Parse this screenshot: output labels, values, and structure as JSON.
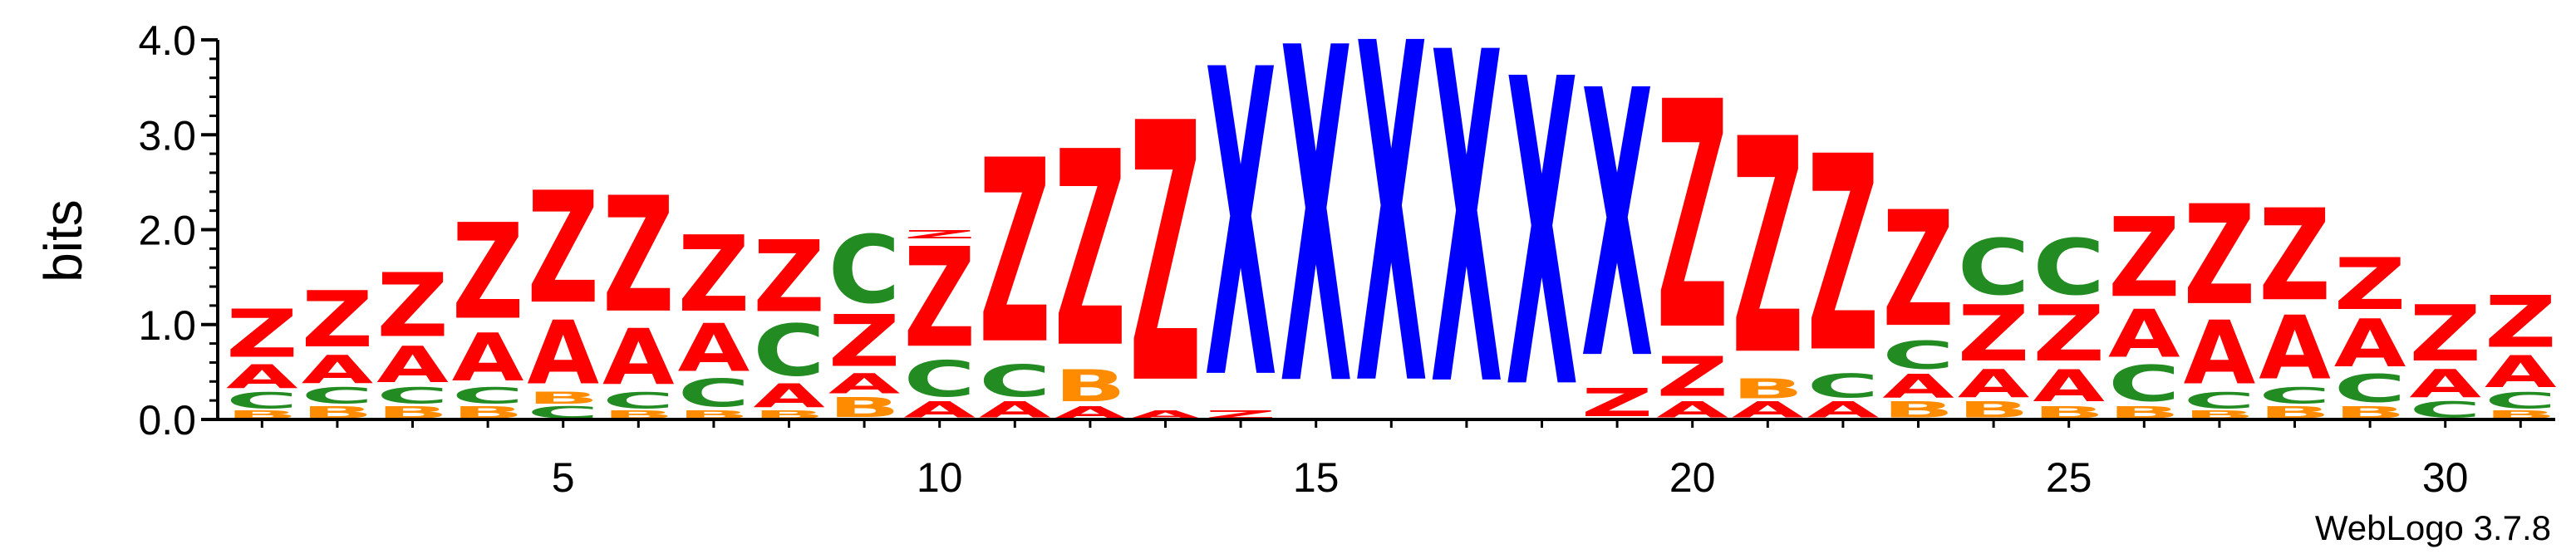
{
  "chart_data": {
    "type": "sequence-logo",
    "ylabel": "bits",
    "ylim": [
      0,
      4.0
    ],
    "y_ticks": [
      "0.0",
      "1.0",
      "2.0",
      "3.0",
      "4.0"
    ],
    "y_tick_values": [
      0,
      1,
      2,
      3,
      4
    ],
    "x_ticks": [
      "5",
      "10",
      "15",
      "20",
      "25",
      "30"
    ],
    "x_tick_values": [
      5,
      10,
      15,
      20,
      25,
      30
    ],
    "positions": [
      1,
      2,
      3,
      4,
      5,
      6,
      7,
      8,
      9,
      10,
      11,
      12,
      13,
      14,
      15,
      16,
      17,
      18,
      19,
      20,
      21,
      22,
      23,
      24,
      25,
      26,
      27,
      28,
      29,
      30,
      31
    ],
    "colors": {
      "Z": "#ff0000",
      "A": "#ff0000",
      "X": "#0000ff",
      "C": "#228b22",
      "B": "#ff8c00",
      "D": "#800080"
    },
    "columns": [
      [
        [
          "B",
          0.1
        ],
        [
          "C",
          0.2
        ],
        [
          "A",
          0.3
        ],
        [
          "Z",
          0.6
        ]
      ],
      [
        [
          "B",
          0.15
        ],
        [
          "C",
          0.2
        ],
        [
          "A",
          0.35
        ],
        [
          "Z",
          0.7
        ]
      ],
      [
        [
          "B",
          0.15
        ],
        [
          "C",
          0.2
        ],
        [
          "A",
          0.45
        ],
        [
          "Z",
          0.8
        ]
      ],
      [
        [
          "B",
          0.15
        ],
        [
          "C",
          0.2
        ],
        [
          "A",
          0.6
        ],
        [
          "Z",
          1.2
        ]
      ],
      [
        [
          "C",
          0.15
        ],
        [
          "B",
          0.15
        ],
        [
          "A",
          0.8
        ],
        [
          "Z",
          1.4
        ]
      ],
      [
        [
          "B",
          0.1
        ],
        [
          "C",
          0.2
        ],
        [
          "A",
          0.7
        ],
        [
          "Z",
          1.45
        ]
      ],
      [
        [
          "B",
          0.1
        ],
        [
          "C",
          0.35
        ],
        [
          "A",
          0.6
        ],
        [
          "Z",
          0.95
        ]
      ],
      [
        [
          "B",
          0.1
        ],
        [
          "A",
          0.3
        ],
        [
          "C",
          0.65
        ],
        [
          "Z",
          0.9
        ]
      ],
      [
        [
          "B",
          0.25
        ],
        [
          "A",
          0.25
        ],
        [
          "Z",
          0.65
        ],
        [
          "C",
          0.85
        ]
      ],
      [
        [
          "A",
          0.2
        ],
        [
          "C",
          0.45
        ],
        [
          "Z",
          1.25
        ],
        [
          "Z",
          0.1
        ]
      ],
      [
        [
          "A",
          0.2
        ],
        [
          "C",
          0.4
        ],
        [
          "Z",
          2.3
        ]
      ],
      [
        [
          "A",
          0.15
        ],
        [
          "B",
          0.4
        ],
        [
          "Z",
          2.45
        ]
      ],
      [
        [
          "A",
          0.1
        ],
        [
          "Z",
          3.25
        ]
      ],
      [
        [
          "Z",
          0.1
        ],
        [
          "X",
          3.85
        ]
      ],
      [
        [
          "X",
          4.2
        ]
      ],
      [
        [
          "X",
          4.25
        ]
      ],
      [
        [
          "X",
          4.15
        ]
      ],
      [
        [
          "X",
          3.85
        ]
      ],
      [
        [
          "Z",
          0.35
        ],
        [
          "X",
          3.35
        ]
      ],
      [
        [
          "A",
          0.2
        ],
        [
          "Z",
          0.5
        ],
        [
          "Z",
          2.85
        ]
      ],
      [
        [
          "A",
          0.2
        ],
        [
          "B",
          0.25
        ],
        [
          "Z",
          2.7
        ]
      ],
      [
        [
          "A",
          0.2
        ],
        [
          "C",
          0.3
        ],
        [
          "Z",
          2.45
        ]
      ],
      [
        [
          "B",
          0.2
        ],
        [
          "A",
          0.3
        ],
        [
          "C",
          0.35
        ],
        [
          "Z",
          1.45
        ]
      ],
      [
        [
          "B",
          0.2
        ],
        [
          "A",
          0.35
        ],
        [
          "Z",
          0.7
        ],
        [
          "C",
          0.7
        ]
      ],
      [
        [
          "B",
          0.15
        ],
        [
          "A",
          0.4
        ],
        [
          "Z",
          0.7
        ],
        [
          "C",
          0.7
        ]
      ],
      [
        [
          "B",
          0.15
        ],
        [
          "C",
          0.45
        ],
        [
          "A",
          0.6
        ],
        [
          "Z",
          1.0
        ]
      ],
      [
        [
          "B",
          0.1
        ],
        [
          "C",
          0.2
        ],
        [
          "A",
          0.8
        ],
        [
          "Z",
          1.25
        ]
      ],
      [
        [
          "B",
          0.15
        ],
        [
          "C",
          0.2
        ],
        [
          "A",
          0.8
        ],
        [
          "Z",
          1.15
        ]
      ],
      [
        [
          "B",
          0.15
        ],
        [
          "C",
          0.35
        ],
        [
          "A",
          0.6
        ],
        [
          "Z",
          0.65
        ]
      ],
      [
        [
          "C",
          0.2
        ],
        [
          "A",
          0.35
        ],
        [
          "Z",
          0.7
        ]
      ],
      [
        [
          "B",
          0.1
        ],
        [
          "C",
          0.2
        ],
        [
          "A",
          0.4
        ],
        [
          "Z",
          0.65
        ]
      ]
    ]
  },
  "footer": {
    "credit": "WebLogo 3.7.8"
  }
}
